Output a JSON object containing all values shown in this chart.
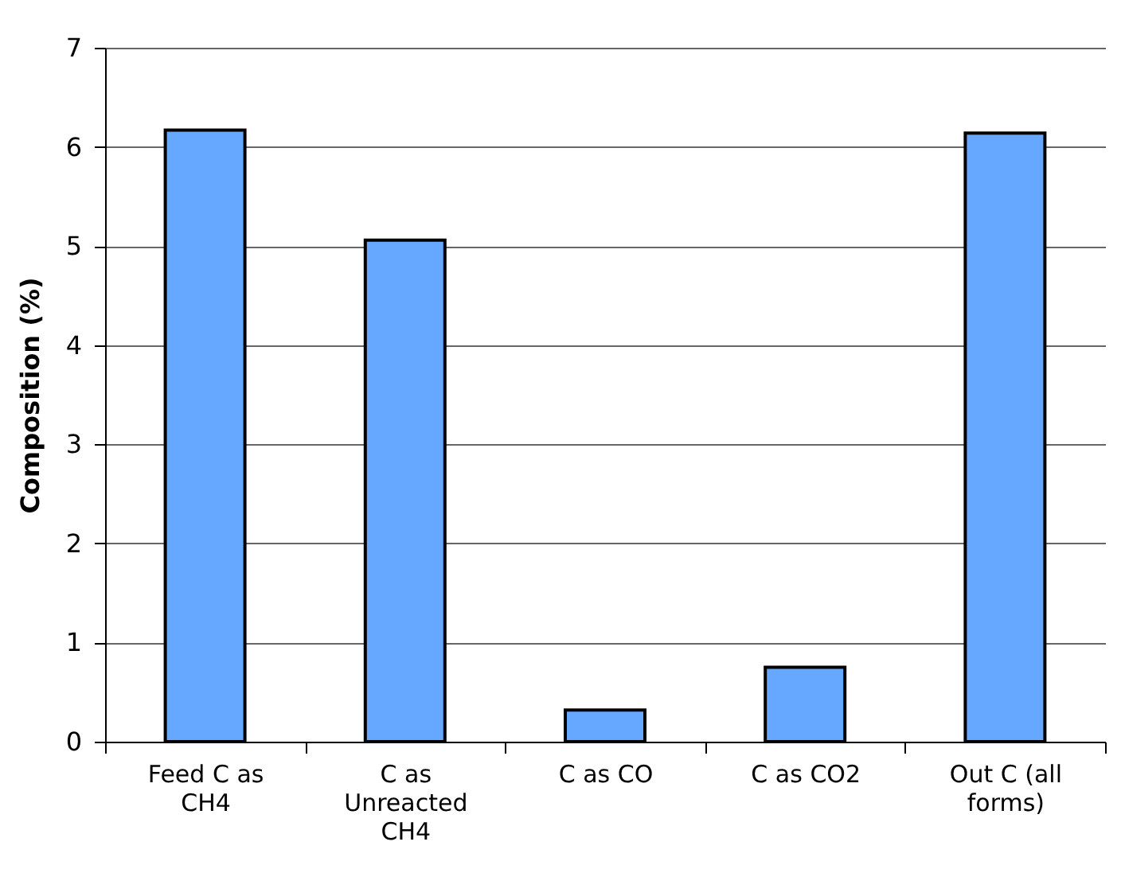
{
  "chart_data": {
    "type": "bar",
    "ylabel": "Composition (%)",
    "categories": [
      "Feed C as CH4",
      "C as Unreacted CH4",
      "C as CO",
      "C as CO2",
      "Out C (all forms)"
    ],
    "values": [
      6.17,
      5.06,
      0.32,
      0.75,
      6.14
    ],
    "color": "#66a8ff",
    "ylim": [
      0,
      7
    ],
    "yticks": [
      0,
      1,
      2,
      3,
      4,
      5,
      6,
      7
    ],
    "grid": "y"
  }
}
